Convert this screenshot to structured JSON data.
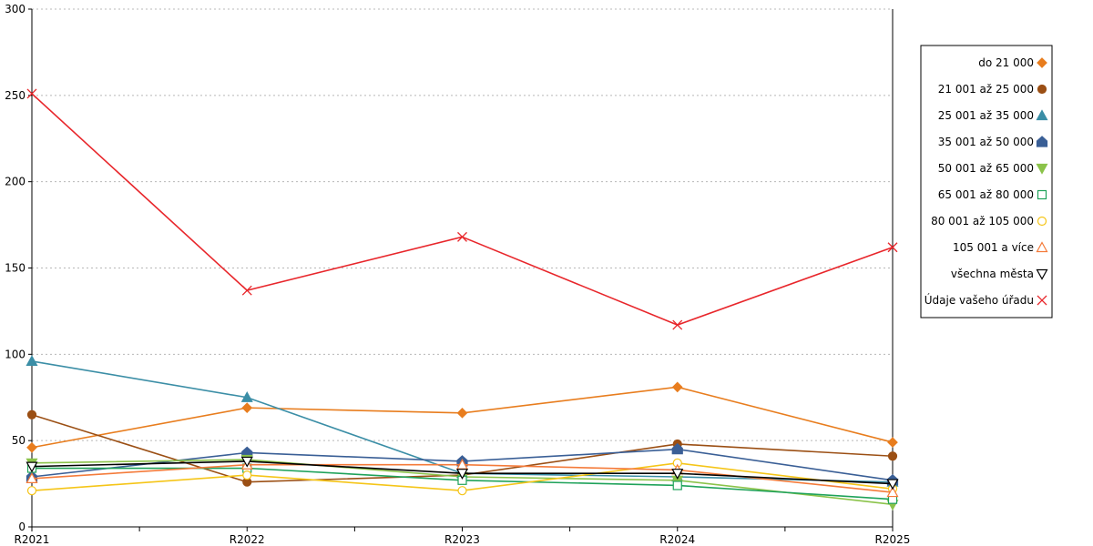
{
  "chart_data": {
    "type": "line",
    "categories": [
      "R2021",
      "R2022",
      "R2023",
      "R2024",
      "R2025"
    ],
    "ylim": [
      0,
      300
    ],
    "yticks": [
      0,
      50,
      100,
      150,
      200,
      250,
      300
    ],
    "grid": true,
    "legend_position": "right",
    "series": [
      {
        "name": "do 21 000",
        "color": "#e87d1e",
        "marker": "diamond",
        "filled": true,
        "values": [
          46,
          69,
          66,
          81,
          49
        ]
      },
      {
        "name": "21 001 až 25 000",
        "color": "#9b4f14",
        "marker": "circle",
        "filled": true,
        "values": [
          65,
          26,
          30,
          48,
          41
        ]
      },
      {
        "name": "25 001 až 35 000",
        "color": "#3b8ea6",
        "marker": "triangle-up",
        "filled": true,
        "values": [
          96,
          75,
          31,
          29,
          26
        ]
      },
      {
        "name": "35 001 až 50 000",
        "color": "#3a5f96",
        "marker": "house",
        "filled": true,
        "values": [
          29,
          43,
          38,
          45,
          27
        ]
      },
      {
        "name": "50 001 až 65 000",
        "color": "#8bc34a",
        "marker": "triangle-down",
        "filled": true,
        "values": [
          37,
          39,
          29,
          27,
          13
        ]
      },
      {
        "name": "65 001 až 80 000",
        "color": "#1fa25a",
        "marker": "square",
        "filled": false,
        "values": [
          34,
          34,
          27,
          24,
          16
        ]
      },
      {
        "name": "80 001 až 105 000",
        "color": "#f5c518",
        "marker": "circle",
        "filled": false,
        "values": [
          21,
          30,
          21,
          37,
          22
        ]
      },
      {
        "name": "105 001 a více",
        "color": "#f47b3a",
        "marker": "triangle-up",
        "filled": false,
        "values": [
          28,
          36,
          36,
          33,
          20
        ]
      },
      {
        "name": "všechna města",
        "color": "#000000",
        "marker": "triangle-down",
        "filled": false,
        "values": [
          35,
          38,
          31,
          31,
          25
        ]
      },
      {
        "name": "Údaje vašeho úřadu",
        "color": "#e8262b",
        "marker": "x",
        "filled": false,
        "values": [
          251,
          137,
          168,
          117,
          162
        ]
      }
    ]
  }
}
